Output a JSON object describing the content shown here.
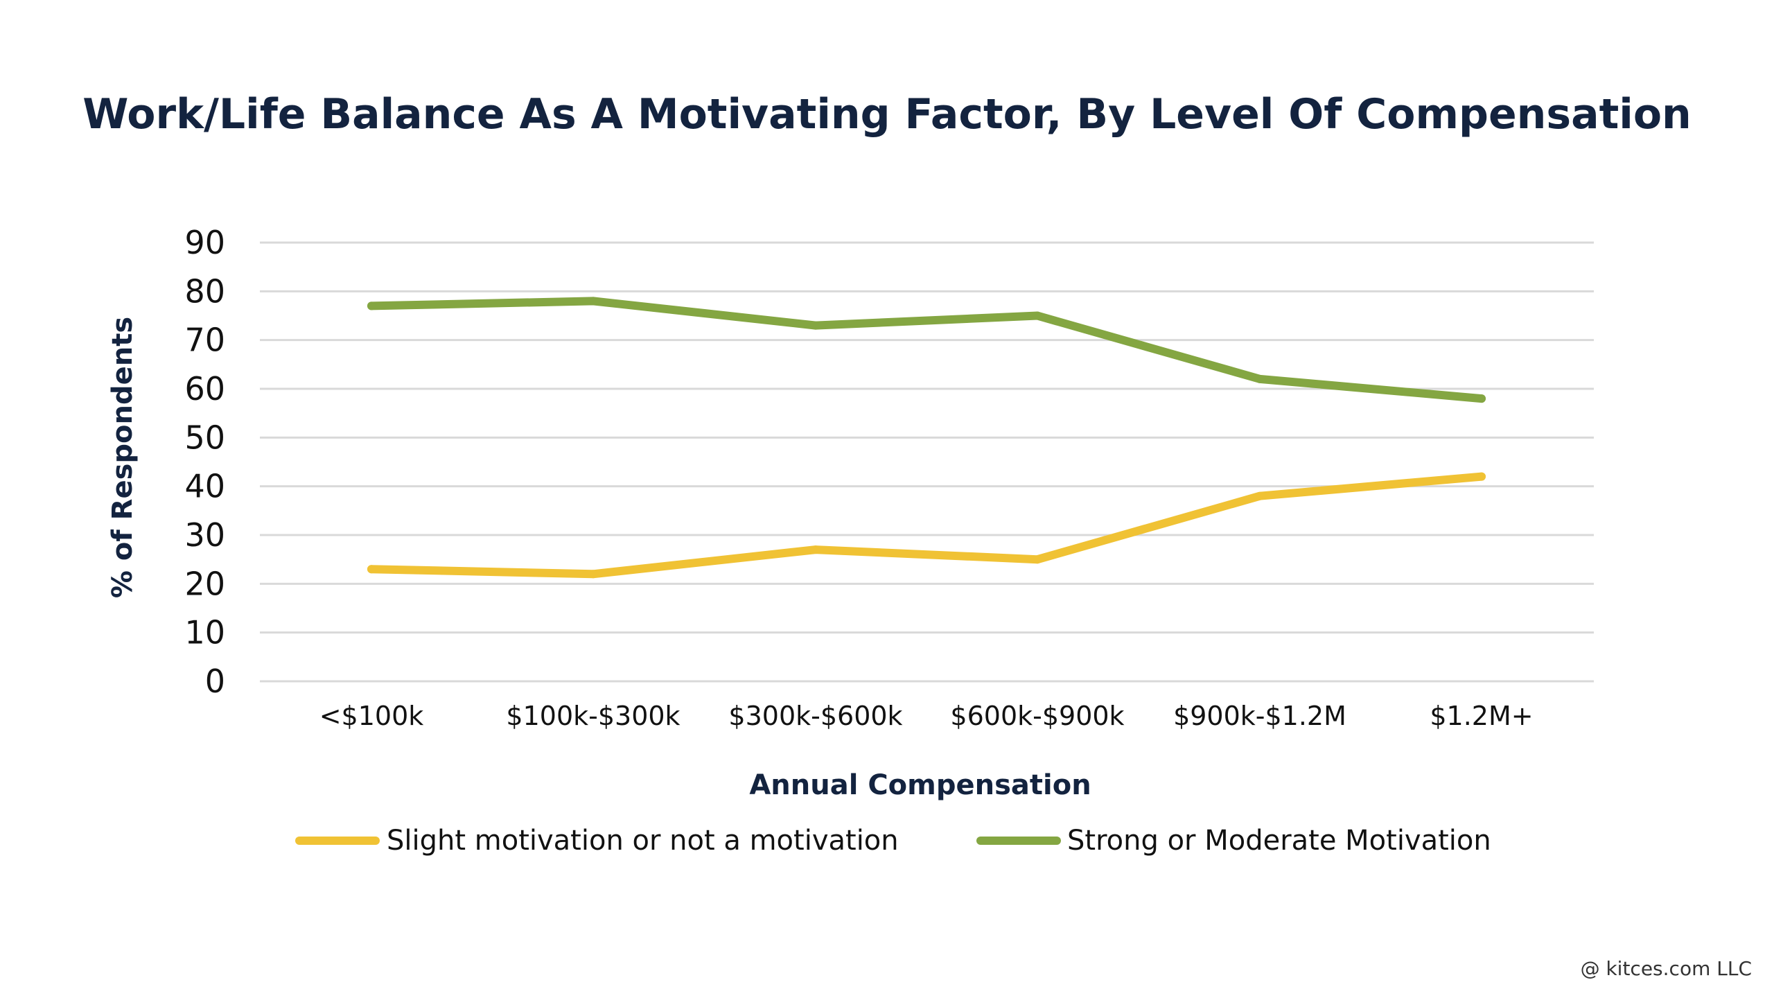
{
  "chart_data": {
    "type": "line",
    "title": "Work/Life Balance As A Motivating Factor, By Level Of Compensation",
    "xlabel": "Annual Compensation",
    "ylabel": "% of Respondents",
    "categories": [
      "<$100k",
      "$100k-$300k",
      "$300k-$600k",
      "$600k-$900k",
      "$900k-$1.2M",
      "$1.2M+"
    ],
    "ylim": [
      0,
      90
    ],
    "yticks": [
      0,
      10,
      20,
      30,
      40,
      50,
      60,
      70,
      80,
      90
    ],
    "grid": true,
    "legend_position": "bottom",
    "series": [
      {
        "name": "Slight motivation or not a motivation",
        "color": "#f0c234",
        "values": [
          23,
          22,
          27,
          25,
          38,
          42
        ]
      },
      {
        "name": "Strong or Moderate Motivation",
        "color": "#84a642",
        "values": [
          77,
          78,
          73,
          75,
          62,
          58
        ]
      }
    ]
  },
  "footer": {
    "copyright": "@ kitces.com LLC"
  }
}
